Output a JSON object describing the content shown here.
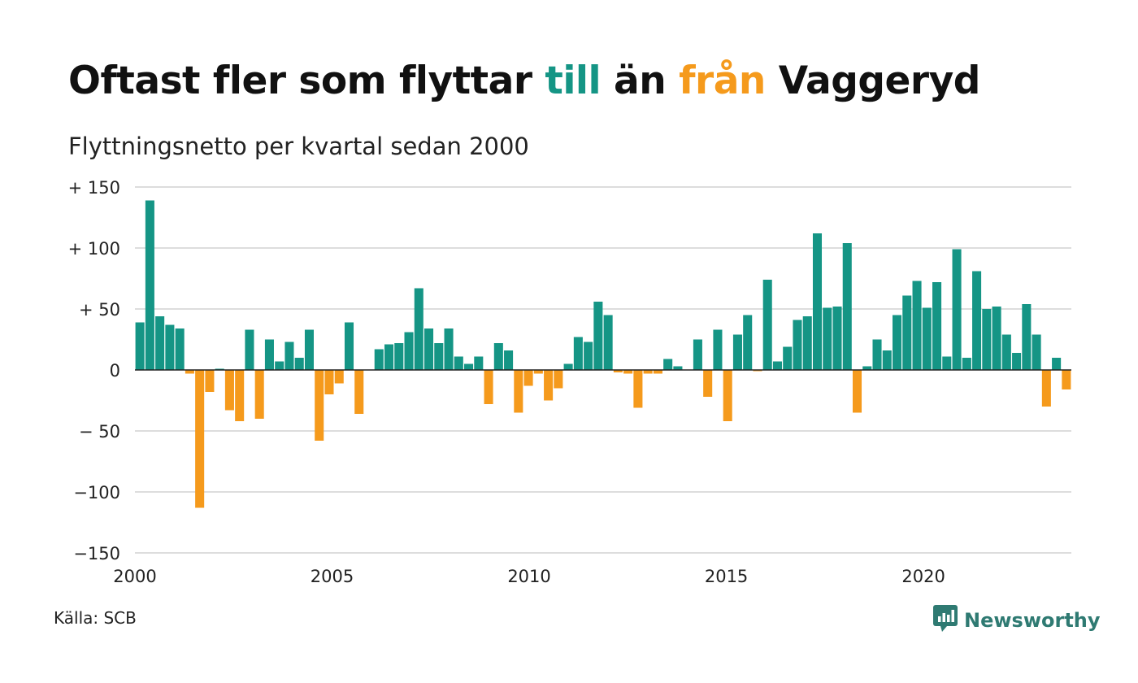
{
  "header": {
    "title_part1": "Oftast fler som flyttar ",
    "title_pos": "till",
    "title_part2": " än ",
    "title_neg": "från",
    "title_part3": " Vaggeryd",
    "subtitle": "Flyttningsnetto per kvartal sedan 2000"
  },
  "footer": {
    "source": "Källa: SCB",
    "brand": "Newsworthy"
  },
  "colors": {
    "positive": "#159585",
    "negative": "#f59a1c",
    "grid": "#dddddd",
    "zero_line": "#222222",
    "brand": "#2f7a72"
  },
  "icons": {
    "brand_logo": "chat-bubble-bar-chart-icon"
  },
  "chart_data": {
    "type": "bar",
    "title": "Oftast fler som flyttar till än från Vaggeryd",
    "subtitle": "Flyttningsnetto per kvartal sedan 2000",
    "xlabel": "",
    "ylabel": "",
    "ylim": [
      -150,
      150
    ],
    "xlim": [
      2000,
      2023.75
    ],
    "yticks": [
      150,
      100,
      50,
      0,
      -50,
      -100,
      -150
    ],
    "ytick_labels": [
      "+ 150",
      "+ 100",
      "+  50",
      "0",
      "− 50",
      "−100",
      "−150"
    ],
    "xticks": [
      2000,
      2005,
      2010,
      2015,
      2020
    ],
    "xtick_labels": [
      "2000",
      "2005",
      "2010",
      "2015",
      "2020"
    ],
    "grid": true,
    "legend": "none",
    "start": "2000 Q1",
    "frequency": "quarterly",
    "values": [
      39,
      139,
      44,
      37,
      34,
      -3,
      -113,
      -18,
      1,
      -33,
      -42,
      33,
      -40,
      25,
      7,
      23,
      10,
      33,
      -58,
      -20,
      -11,
      39,
      -36,
      0,
      17,
      21,
      22,
      31,
      67,
      34,
      22,
      34,
      11,
      5,
      11,
      -28,
      22,
      16,
      -35,
      -13,
      -3,
      -25,
      -15,
      5,
      27,
      23,
      56,
      45,
      -2,
      -3,
      -31,
      -3,
      -3,
      9,
      3,
      0,
      25,
      -22,
      33,
      -42,
      29,
      45,
      -1,
      74,
      7,
      19,
      41,
      44,
      112,
      51,
      52,
      104,
      -35,
      3,
      25,
      16,
      45,
      61,
      73,
      51,
      72,
      11,
      99,
      10,
      81,
      50,
      52,
      29,
      14,
      54,
      29,
      -30,
      10,
      -16
    ]
  }
}
